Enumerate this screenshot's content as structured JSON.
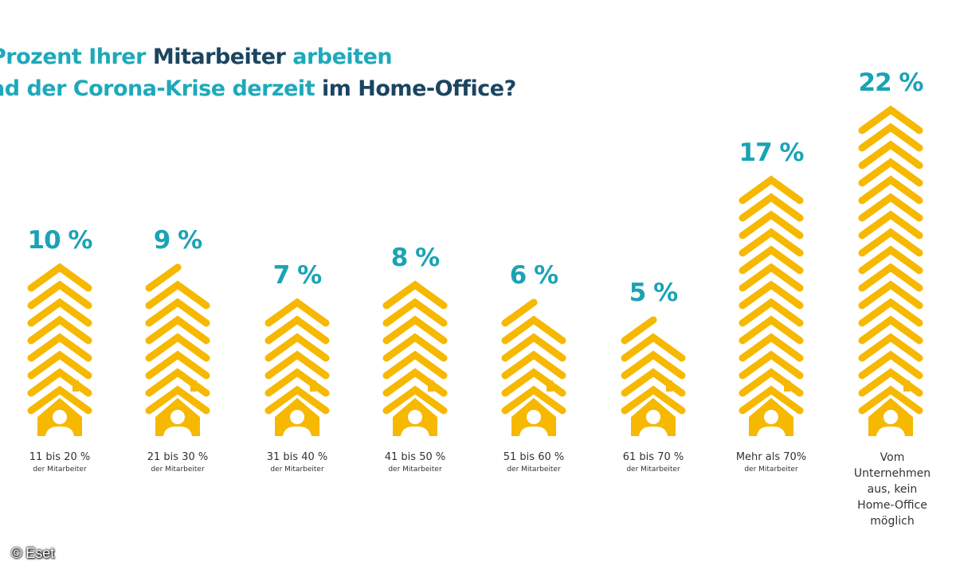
{
  "title": {
    "line1": [
      {
        "text": "Prozent Ihrer ",
        "style": "teal"
      },
      {
        "text": "Mitarbeiter",
        "style": "dark"
      },
      {
        "text": " arbeiten",
        "style": "teal"
      }
    ],
    "line2": [
      {
        "text": "ad der Corona-Krise derzeit ",
        "style": "teal"
      },
      {
        "text": "im Home-Office?",
        "style": "dark"
      }
    ]
  },
  "copyright": "© Eset",
  "colors": {
    "teal": "#1ea9bb",
    "dark": "#1b4560",
    "icon": "#f6b800"
  },
  "chart_data": {
    "type": "bar",
    "title": "Prozent Ihrer Mitarbeiter arbeiten ad der Corona-Krise derzeit im Home-Office?",
    "xlabel": "",
    "ylabel": "",
    "unit": "%",
    "categories": [
      "11 bis 20 % der Mitarbeiter",
      "21 bis 30 % der Mitarbeiter",
      "31 bis 40 % der Mitarbeiter",
      "41 bis 50 % der Mitarbeiter",
      "51 bis 60 % der Mitarbeiter",
      "61 bis 70 % der Mitarbeiter",
      "Mehr als 70% der Mitarbeiter",
      "Vom Unternehmen aus, kein Home-Office möglich"
    ],
    "values": [
      10,
      9,
      7,
      8,
      6,
      5,
      17,
      22
    ],
    "value_labels": [
      "10 %",
      "9 %",
      "7 %",
      "8 %",
      "6 %",
      "5 %",
      "17 %",
      "22 %"
    ],
    "label_lines": [
      [
        "11 bis 20 %",
        "der Mitarbeiter"
      ],
      [
        "21 bis 30 %",
        "der Mitarbeiter"
      ],
      [
        "31 bis 40 %",
        "der Mitarbeiter"
      ],
      [
        "41 bis 50 %",
        "der Mitarbeiter"
      ],
      [
        "51 bis 60 %",
        "der Mitarbeiter"
      ],
      [
        "61 bis 70 %",
        "der Mitarbeiter"
      ],
      [
        "Mehr als 70%",
        "der Mitarbeiter"
      ],
      [
        "Vom",
        "Unternehmen",
        "aus, kein",
        "Home-Office",
        "möglich"
      ]
    ],
    "ylim": [
      0,
      22
    ],
    "grid": false,
    "legend": "none"
  }
}
